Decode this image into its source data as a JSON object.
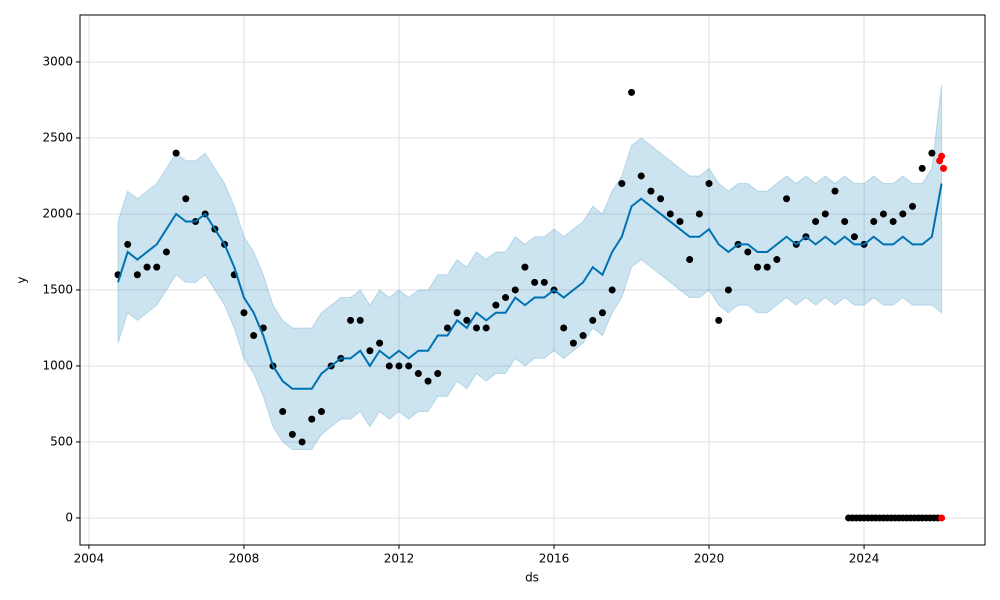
{
  "chart_data": {
    "type": "forecast",
    "xlabel": "ds",
    "ylabel": "y",
    "xlim": [
      2003.77,
      2027.12
    ],
    "ylim": [
      -178,
      3309
    ],
    "xticks": [
      2004,
      2008,
      2012,
      2016,
      2020,
      2024
    ],
    "yticks": [
      0,
      500,
      1000,
      1500,
      2000,
      2500,
      3000
    ],
    "grid": true,
    "band": {
      "color": "#0072b2",
      "x": [
        2004.75,
        2005,
        2005.25,
        2005.5,
        2005.75,
        2006,
        2006.25,
        2006.5,
        2006.75,
        2007,
        2007.25,
        2007.5,
        2007.75,
        2008,
        2008.25,
        2008.5,
        2008.75,
        2009,
        2009.25,
        2009.5,
        2009.75,
        2010,
        2010.25,
        2010.5,
        2010.75,
        2011,
        2011.25,
        2011.5,
        2011.75,
        2012,
        2012.25,
        2012.5,
        2012.75,
        2013,
        2013.25,
        2013.5,
        2013.75,
        2014,
        2014.25,
        2014.5,
        2014.75,
        2015,
        2015.25,
        2015.5,
        2015.75,
        2016,
        2016.25,
        2016.5,
        2016.75,
        2017,
        2017.25,
        2017.5,
        2017.75,
        2018,
        2018.25,
        2018.5,
        2018.75,
        2019,
        2019.25,
        2019.5,
        2019.75,
        2020,
        2020.25,
        2020.5,
        2020.75,
        2021,
        2021.25,
        2021.5,
        2021.75,
        2022,
        2022.25,
        2022.5,
        2022.75,
        2023,
        2023.25,
        2023.5,
        2023.75,
        2024,
        2024.25,
        2024.5,
        2024.75,
        2025,
        2025.25,
        2025.5,
        2025.75,
        2026
      ],
      "lower": [
        1150,
        1350,
        1300,
        1350,
        1400,
        1500,
        1600,
        1550,
        1550,
        1600,
        1500,
        1400,
        1250,
        1050,
        950,
        800,
        600,
        500,
        450,
        450,
        450,
        550,
        600,
        650,
        650,
        700,
        600,
        700,
        650,
        700,
        650,
        700,
        700,
        800,
        800,
        900,
        850,
        950,
        900,
        950,
        950,
        1050,
        1000,
        1050,
        1050,
        1100,
        1050,
        1100,
        1150,
        1250,
        1200,
        1350,
        1450,
        1650,
        1700,
        1650,
        1600,
        1550,
        1500,
        1450,
        1450,
        1500,
        1400,
        1350,
        1400,
        1400,
        1350,
        1350,
        1400,
        1450,
        1400,
        1450,
        1400,
        1450,
        1400,
        1450,
        1400,
        1400,
        1450,
        1400,
        1400,
        1450,
        1400,
        1400,
        1400,
        1350
      ],
      "upper": [
        1950,
        2150,
        2100,
        2150,
        2200,
        2300,
        2400,
        2350,
        2350,
        2400,
        2300,
        2200,
        2050,
        1850,
        1750,
        1600,
        1400,
        1300,
        1250,
        1250,
        1250,
        1350,
        1400,
        1450,
        1450,
        1500,
        1400,
        1500,
        1450,
        1500,
        1450,
        1500,
        1500,
        1600,
        1600,
        1700,
        1650,
        1750,
        1700,
        1750,
        1750,
        1850,
        1800,
        1850,
        1850,
        1900,
        1850,
        1900,
        1950,
        2050,
        2000,
        2150,
        2250,
        2450,
        2500,
        2450,
        2400,
        2350,
        2300,
        2250,
        2250,
        2300,
        2200,
        2150,
        2200,
        2200,
        2150,
        2150,
        2200,
        2250,
        2200,
        2250,
        2200,
        2250,
        2200,
        2250,
        2200,
        2200,
        2250,
        2200,
        2200,
        2250,
        2200,
        2200,
        2300,
        2850
      ]
    },
    "line": {
      "color": "#0072b2",
      "x": [
        2004.75,
        2005,
        2005.25,
        2005.5,
        2005.75,
        2006,
        2006.25,
        2006.5,
        2006.75,
        2007,
        2007.25,
        2007.5,
        2007.75,
        2008,
        2008.25,
        2008.5,
        2008.75,
        2009,
        2009.25,
        2009.5,
        2009.75,
        2010,
        2010.25,
        2010.5,
        2010.75,
        2011,
        2011.25,
        2011.5,
        2011.75,
        2012,
        2012.25,
        2012.5,
        2012.75,
        2013,
        2013.25,
        2013.5,
        2013.75,
        2014,
        2014.25,
        2014.5,
        2014.75,
        2015,
        2015.25,
        2015.5,
        2015.75,
        2016,
        2016.25,
        2016.5,
        2016.75,
        2017,
        2017.25,
        2017.5,
        2017.75,
        2018,
        2018.25,
        2018.5,
        2018.75,
        2019,
        2019.25,
        2019.5,
        2019.75,
        2020,
        2020.25,
        2020.5,
        2020.75,
        2021,
        2021.25,
        2021.5,
        2021.75,
        2022,
        2022.25,
        2022.5,
        2022.75,
        2023,
        2023.25,
        2023.5,
        2023.75,
        2024,
        2024.25,
        2024.5,
        2024.75,
        2025,
        2025.25,
        2025.5,
        2025.75,
        2026
      ],
      "values": [
        1550,
        1750,
        1700,
        1750,
        1800,
        1900,
        2000,
        1950,
        1950,
        2000,
        1900,
        1800,
        1650,
        1450,
        1350,
        1200,
        1000,
        900,
        850,
        850,
        850,
        950,
        1000,
        1050,
        1050,
        1100,
        1000,
        1100,
        1050,
        1100,
        1050,
        1100,
        1100,
        1200,
        1200,
        1300,
        1250,
        1350,
        1300,
        1350,
        1350,
        1450,
        1400,
        1450,
        1450,
        1500,
        1450,
        1500,
        1550,
        1650,
        1600,
        1750,
        1850,
        2050,
        2100,
        2050,
        2000,
        1950,
        1900,
        1850,
        1850,
        1900,
        1800,
        1750,
        1800,
        1800,
        1750,
        1750,
        1800,
        1850,
        1800,
        1850,
        1800,
        1850,
        1800,
        1850,
        1800,
        1800,
        1850,
        1800,
        1800,
        1850,
        1800,
        1800,
        1850,
        2200
      ]
    },
    "points": [
      {
        "color": "#000000",
        "x": [
          2004.75,
          2005,
          2005.25,
          2005.5,
          2005.75,
          2006,
          2006.25,
          2006.5,
          2006.75,
          2007,
          2007.25,
          2007.5,
          2007.75,
          2008,
          2008.25,
          2008.5,
          2008.75,
          2009,
          2009.25,
          2009.5,
          2009.75,
          2010,
          2010.25,
          2010.5,
          2010.75,
          2011,
          2011.25,
          2011.5,
          2011.75,
          2012,
          2012.25,
          2012.5,
          2012.75,
          2013,
          2013.25,
          2013.5,
          2013.75,
          2014,
          2014.25,
          2014.5,
          2014.75,
          2015,
          2015.25,
          2015.5,
          2015.75,
          2016,
          2016.25,
          2016.5,
          2016.75,
          2017,
          2017.25,
          2017.5,
          2017.75,
          2018,
          2018.25,
          2018.5,
          2018.75,
          2019,
          2019.25,
          2019.5,
          2019.75,
          2020,
          2020.25,
          2020.5,
          2020.75,
          2021,
          2021.25,
          2021.5,
          2021.75,
          2022,
          2022.25,
          2022.5,
          2022.75,
          2023,
          2023.25,
          2023.5,
          2023.75,
          2024,
          2024.25,
          2024.5,
          2024.75,
          2025,
          2025.25,
          2025.5,
          2025.75
        ],
        "values": [
          1600,
          1800,
          1600,
          1650,
          1650,
          1750,
          2400,
          2100,
          1950,
          2000,
          1900,
          1800,
          1600,
          1350,
          1200,
          1250,
          1000,
          700,
          550,
          500,
          650,
          700,
          1000,
          1050,
          1300,
          1300,
          1100,
          1150,
          1000,
          1000,
          1000,
          950,
          900,
          950,
          1250,
          1350,
          1300,
          1250,
          1250,
          1400,
          1450,
          1500,
          1650,
          1550,
          1550,
          1500,
          1250,
          1150,
          1200,
          1300,
          1350,
          1500,
          2200,
          2800,
          2250,
          2150,
          2100,
          2000,
          1950,
          1700,
          2000,
          2200,
          1300,
          1500,
          1800,
          1750,
          1650,
          1650,
          1700,
          2100,
          1800,
          1850,
          1950,
          2000,
          2150,
          1950,
          1850,
          1800,
          1950,
          2000,
          1950,
          2000,
          2050,
          2300,
          2400
        ]
      },
      {
        "color": "#000000",
        "x": [
          2023.6,
          2023.7,
          2023.8,
          2023.9,
          2024,
          2024.1,
          2024.2,
          2024.3,
          2024.4,
          2024.5,
          2024.6,
          2024.7,
          2024.8,
          2024.9,
          2025,
          2025.1,
          2025.2,
          2025.3,
          2025.4,
          2025.5,
          2025.6,
          2025.7,
          2025.8,
          2025.9
        ],
        "values": [
          0,
          0,
          0,
          0,
          0,
          0,
          0,
          0,
          0,
          0,
          0,
          0,
          0,
          0,
          0,
          0,
          0,
          0,
          0,
          0,
          0,
          0,
          0,
          0
        ]
      },
      {
        "color": "#ff0000",
        "x": [
          2025.95,
          2026,
          2026,
          2026.05
        ],
        "values": [
          2350,
          2380,
          0,
          2300
        ]
      }
    ]
  }
}
